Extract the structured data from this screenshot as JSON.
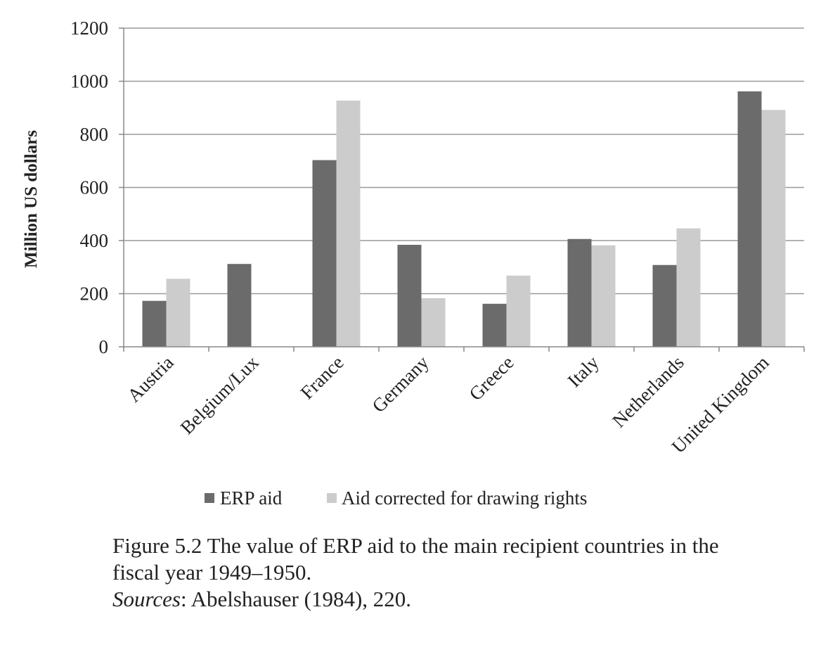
{
  "chart_data": {
    "type": "bar",
    "title": "",
    "xlabel": "",
    "ylabel": "Million US dollars",
    "categories": [
      "Austria",
      "Belgium/Lux",
      "France",
      "Germany",
      "Greece",
      "Italy",
      "Netherlands",
      "United Kingdom"
    ],
    "series": [
      {
        "name": "ERP aid",
        "color": "#6b6b6b",
        "values": [
          173,
          312,
          703,
          384,
          162,
          406,
          308,
          962
        ]
      },
      {
        "name": "Aid corrected for drawing rights",
        "color": "#cccccc",
        "values": [
          256,
          0,
          927,
          183,
          268,
          382,
          446,
          892
        ]
      }
    ],
    "ylim": [
      0,
      1200
    ],
    "yticks": [
      0,
      200,
      400,
      600,
      800,
      1000,
      1200
    ],
    "grid": true,
    "legend": "bottom"
  },
  "caption": {
    "figure_label": "Figure 5.2",
    "line1": "The value of ERP aid to the main recipient countries in the",
    "line2": "fiscal year 1949–1950.",
    "sources_label": "Sources",
    "sources_text": ": Abelshauser (1984), 220."
  }
}
